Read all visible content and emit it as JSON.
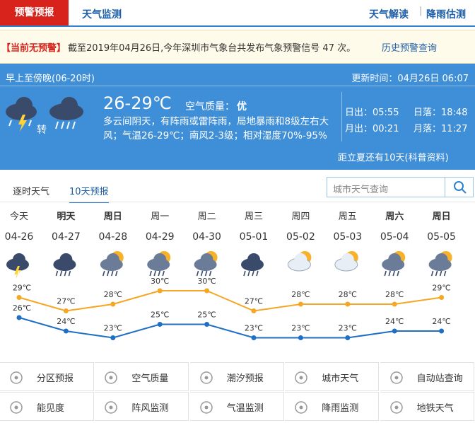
{
  "tabs": [
    "预警预报",
    "天气监测"
  ],
  "top_links": [
    "天气解读",
    "降雨估测"
  ],
  "alert": {
    "label": "【当前无预警】",
    "text": "截至2019年04月26日,今年深圳市气象台共发布气象预警信号 47 次。",
    "link": "历史预警查询"
  },
  "today": {
    "period": "早上至傍晚(06-20时)",
    "update": "更新时间：04月26日 06:07",
    "temp": "26-29℃",
    "aq_label": "空气质量：",
    "aq": "优",
    "turn": "转",
    "desc": "多云间阴天，有阵雨或雷阵雨，局地暴雨和8级左右大风；气温26-29℃；南风2-3级；相对湿度70%-95%",
    "sun": [
      "日出：05:55",
      "日落：18:48",
      "月出：00:21",
      "月落：11:27"
    ],
    "summer": "距立夏还有10天(科普资料)"
  },
  "subtabs": [
    "逐时天气",
    "10天预报"
  ],
  "search_placeholder": "城市天气查询",
  "forecast": {
    "days": [
      "今天",
      "明天",
      "周日",
      "周一",
      "周二",
      "周三",
      "周四",
      "周五",
      "周六",
      "周日"
    ],
    "dates": [
      "04-26",
      "04-27",
      "04-28",
      "04-29",
      "04-30",
      "05-01",
      "05-02",
      "05-03",
      "05-04",
      "05-05"
    ],
    "high": [
      29,
      27,
      28,
      30,
      30,
      27,
      28,
      28,
      28,
      29
    ],
    "high_labels": [
      "29℃",
      "27℃",
      "28℃",
      "30℃",
      "30℃",
      "27℃",
      "28℃",
      "28℃",
      "28℃",
      "29℃"
    ],
    "low": [
      26,
      24,
      23,
      25,
      25,
      23,
      23,
      23,
      24,
      24
    ],
    "low_labels": [
      "26℃",
      "24℃",
      "23℃",
      "25℃",
      "25℃",
      "23℃",
      "23℃",
      "23℃",
      "24℃",
      "24℃"
    ],
    "high_color": "#f5a623",
    "low_color": "#1f6fc5"
  },
  "links": [
    "分区预报",
    "空气质量",
    "潮汐预报",
    "城市天气",
    "自动站查询",
    "能见度",
    "阵风监测",
    "气温监测",
    "降雨监测",
    "地铁天气"
  ]
}
